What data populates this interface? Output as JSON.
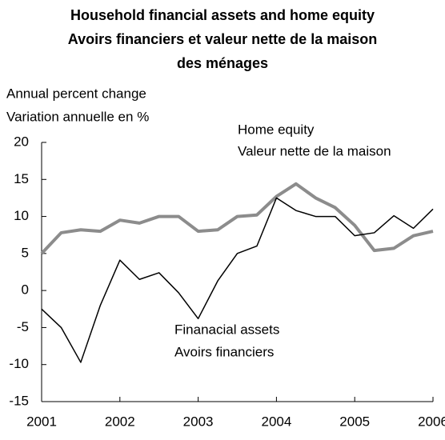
{
  "chart_data": {
    "type": "line",
    "title": [
      "Household financial assets and home equity",
      "Avoirs financiers et valeur nette de la maison",
      "des ménages"
    ],
    "ylabel": [
      "Annual percent change",
      "Variation annuelle en %"
    ],
    "x": [
      2001,
      2001.25,
      2001.5,
      2001.75,
      2002,
      2002.25,
      2002.5,
      2002.75,
      2003,
      2003.25,
      2003.5,
      2003.75,
      2004,
      2004.25,
      2004.5,
      2004.75,
      2005,
      2005.25,
      2005.5,
      2005.75,
      2006
    ],
    "series": [
      {
        "name": "Finanacial assets",
        "color": "#000000",
        "values": [
          -2.5,
          -5,
          -9.7,
          -2,
          4.1,
          1.5,
          2.4,
          -0.3,
          -3.8,
          1.3,
          5,
          6,
          12.5,
          10.8,
          10,
          10,
          7.4,
          7.8,
          10.1,
          8.4,
          11
        ]
      },
      {
        "name": "Home equity",
        "color": "#8c8c8c",
        "values": [
          5,
          7.8,
          8.2,
          8,
          9.5,
          9.1,
          10,
          10,
          8,
          8.2,
          10,
          10.2,
          12.7,
          14.4,
          12.5,
          11.2,
          8.8,
          5.4,
          5.7,
          7.4,
          8
        ]
      }
    ],
    "annotations": [
      "Valeur nette de la maison",
      "Avoirs financiers"
    ],
    "xlim": [
      2001,
      2006
    ],
    "xticks": [
      2001,
      2002,
      2003,
      2004,
      2005,
      2006
    ],
    "ylim": [
      -15,
      20
    ],
    "yticks": [
      -15,
      -10,
      -5,
      0,
      5,
      10,
      15,
      20
    ],
    "grid": false
  }
}
